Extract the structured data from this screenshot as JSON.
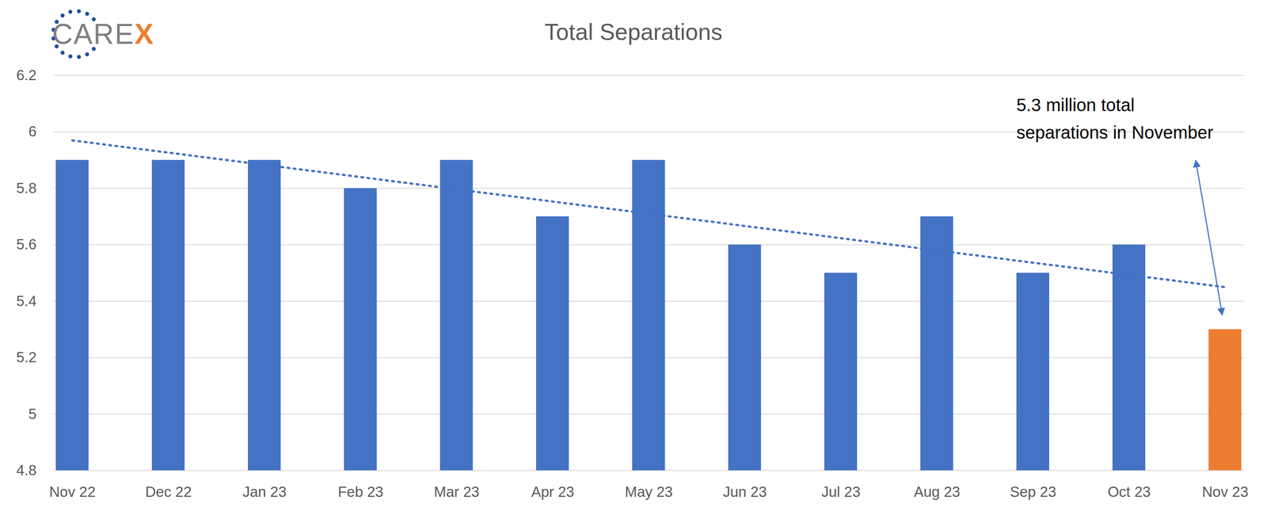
{
  "chart_data": {
    "type": "bar",
    "title": "Total Separations",
    "logo": "CAREX",
    "categories": [
      "Nov 22",
      "Dec 22",
      "Jan 23",
      "Feb 23",
      "Mar 23",
      "Apr 23",
      "May 23",
      "Jun 23",
      "Jul 23",
      "Aug 23",
      "Sep 23",
      "Oct 23",
      "Nov 23"
    ],
    "values": [
      5.9,
      5.9,
      5.9,
      5.8,
      5.9,
      5.7,
      5.9,
      5.6,
      5.5,
      5.7,
      5.5,
      5.6,
      5.3
    ],
    "colors": [
      "#4472c4",
      "#4472c4",
      "#4472c4",
      "#4472c4",
      "#4472c4",
      "#4472c4",
      "#4472c4",
      "#4472c4",
      "#4472c4",
      "#4472c4",
      "#4472c4",
      "#4472c4",
      "#ed7d31"
    ],
    "ylim": [
      4.8,
      6.2
    ],
    "yticks": [
      4.8,
      5,
      5.2,
      5.4,
      5.6,
      5.8,
      6,
      6.2
    ],
    "grid": true,
    "trendline": {
      "type": "line",
      "line_style": "dotted",
      "color": "#4472c4",
      "x": [
        "Nov 22",
        "Nov 23"
      ],
      "values": [
        5.97,
        5.45
      ]
    },
    "annotation": {
      "text": "5.3 million total\nseparations in November",
      "category": "Nov 23",
      "value": 5.3
    }
  }
}
